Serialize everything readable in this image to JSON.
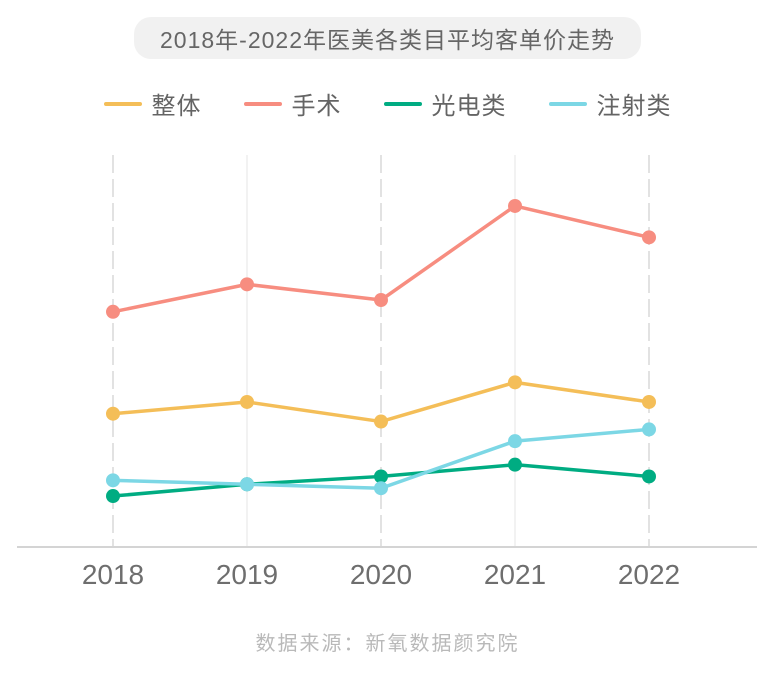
{
  "title": "2018年-2022年医美各类目平均客单价走势",
  "footer": "数据来源：新氧数据颜究院",
  "chart_data": {
    "type": "line",
    "title": "2018年-2022年医美各类目平均客单价走势",
    "categories": [
      "2018",
      "2019",
      "2020",
      "2021",
      "2022"
    ],
    "series": [
      {
        "name": "整体",
        "color": "#F4BE58",
        "values": [
          34,
          37,
          32,
          42,
          37
        ]
      },
      {
        "name": "手术",
        "color": "#F78D80",
        "values": [
          60,
          67,
          63,
          87,
          79
        ]
      },
      {
        "name": "光电类",
        "color": "#00AC82",
        "values": [
          13,
          16,
          18,
          21,
          18
        ]
      },
      {
        "name": "注射类",
        "color": "#7CD7E5",
        "values": [
          17,
          16,
          15,
          27,
          30
        ]
      }
    ],
    "xlabel": "",
    "ylabel": "",
    "ylim": [
      0,
      100
    ],
    "y_axis_visible": false,
    "value_units": "relative scale 0-100 (no y-axis labels shown in source)",
    "grid": "vertical-lines-only",
    "legend_position": "top"
  },
  "style_colors": {
    "title_bg": "#f1f1f1",
    "title_text": "#666666",
    "legend_text": "#646464",
    "grid_dashed": "#e2e2e2",
    "grid_solid": "#ededed",
    "axis_line": "#d4d4d4",
    "tick_label": "#6e6e6e",
    "footer_text": "#b9b9b9"
  }
}
